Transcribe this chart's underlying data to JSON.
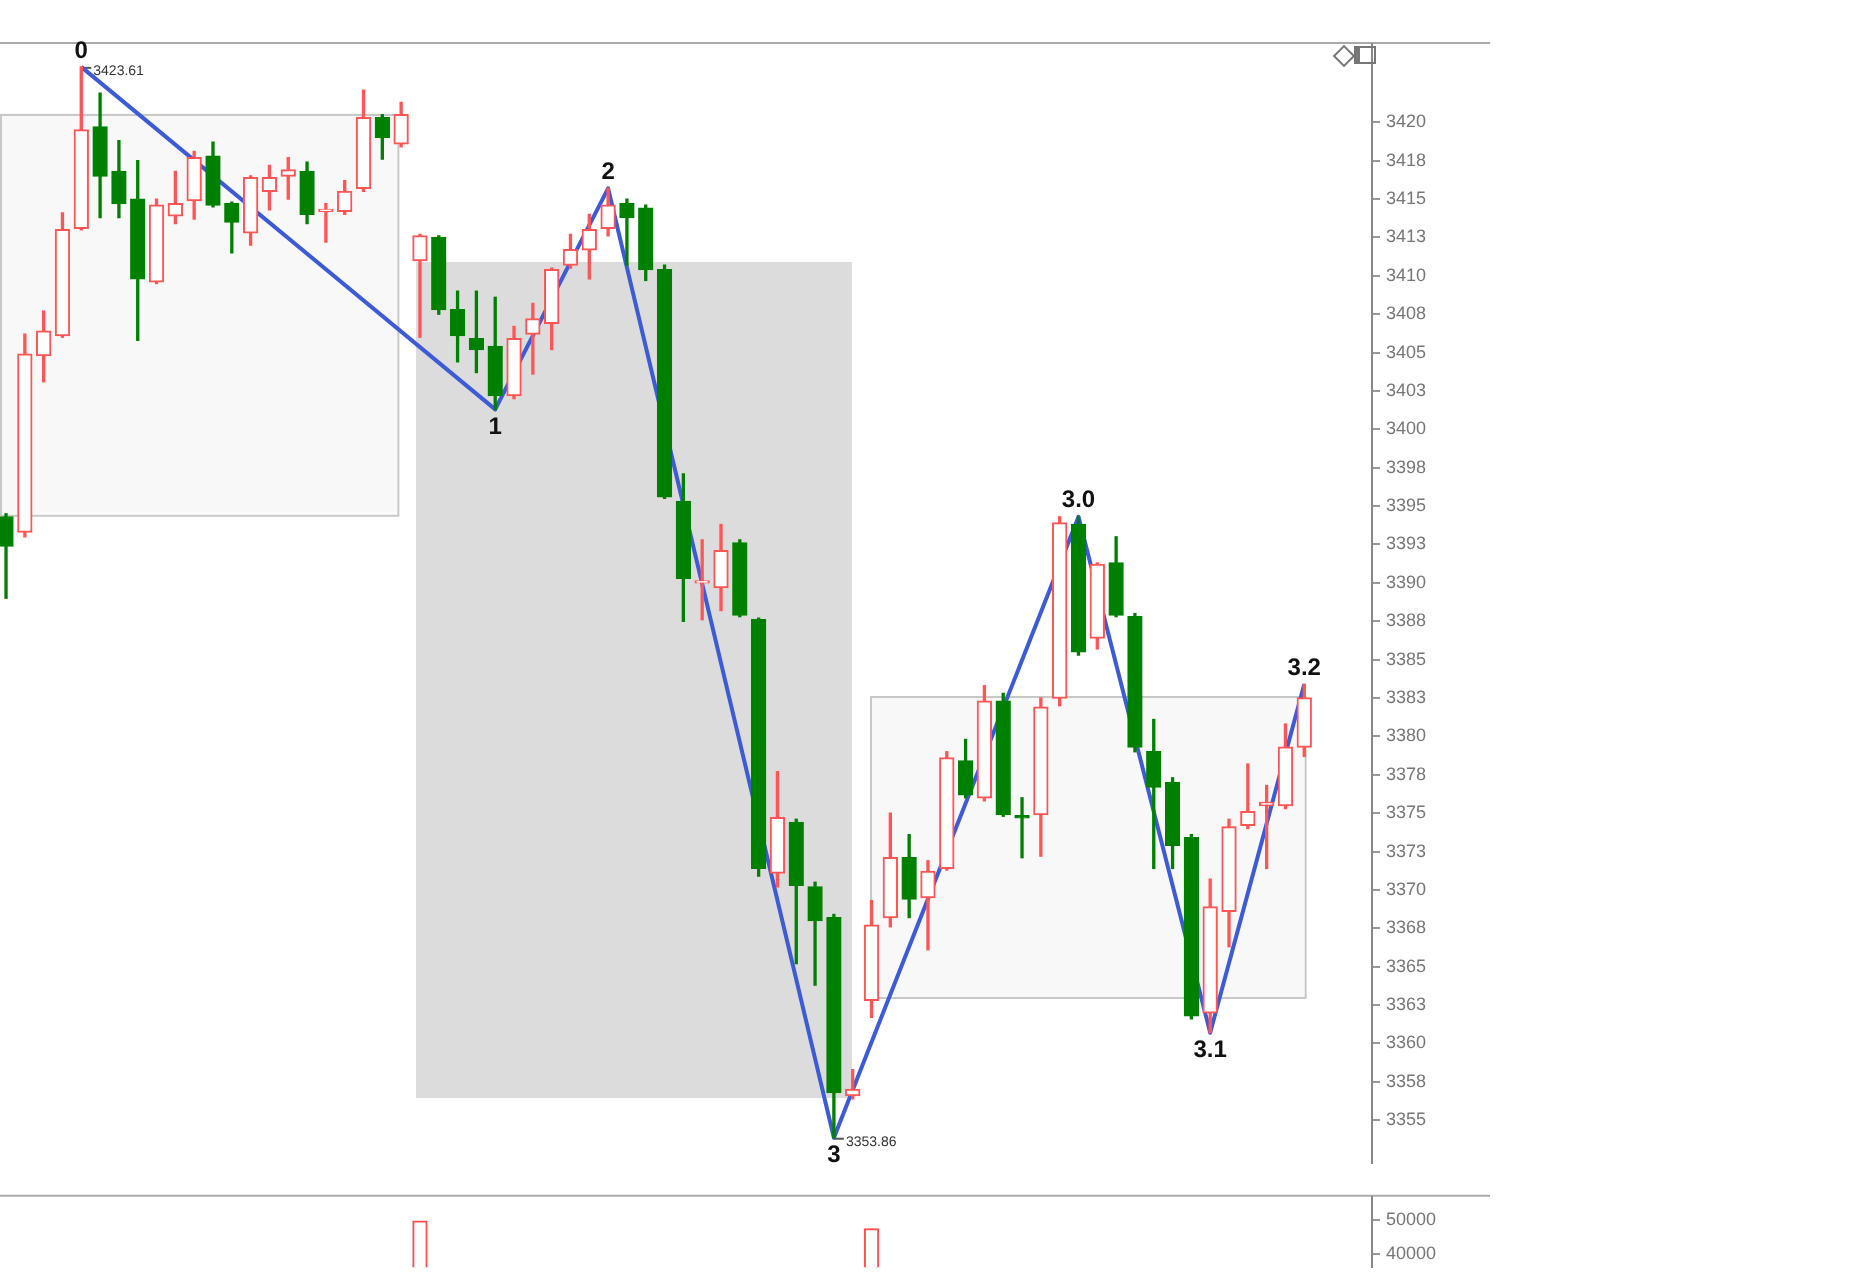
{
  "chart_data": [
    {
      "type": "candlestick",
      "categories": [
        null,
        null,
        null,
        null,
        null,
        null,
        null,
        null,
        null,
        null,
        null,
        null,
        null,
        null,
        null,
        null,
        null,
        null,
        null,
        null,
        null,
        null,
        null,
        null,
        null,
        null,
        null,
        null,
        null,
        null,
        null,
        null,
        null,
        null,
        null,
        null,
        null,
        null,
        null,
        null,
        null,
        null,
        null,
        null,
        null,
        null,
        null,
        null,
        null,
        null,
        null,
        null,
        null,
        null,
        null,
        null,
        null,
        null,
        null,
        null,
        null,
        null,
        null,
        null,
        null,
        null,
        null,
        null,
        null,
        null
      ],
      "ohlc": [
        [
          3394.3,
          3394.5,
          3389.0,
          3392.4
        ],
        [
          3393.3,
          3406.2,
          3393.0,
          3404.9
        ],
        [
          3404.8,
          3407.7,
          3403.1,
          3406.4
        ],
        [
          3406.1,
          3414.1,
          3406.0,
          3413.0
        ],
        [
          3413.1,
          3423.61,
          3413.0,
          3419.5
        ],
        [
          3419.7,
          3421.9,
          3413.8,
          3416.5
        ],
        [
          3416.8,
          3418.8,
          3413.8,
          3414.7
        ],
        [
          3415.0,
          3417.5,
          3405.8,
          3409.8
        ],
        [
          3409.6,
          3415.0,
          3409.5,
          3414.6
        ],
        [
          3413.9,
          3416.8,
          3413.4,
          3414.7
        ],
        [
          3414.9,
          3418.1,
          3413.7,
          3417.7
        ],
        [
          3417.8,
          3418.7,
          3414.5,
          3414.6
        ],
        [
          3414.7,
          3414.8,
          3411.5,
          3413.5
        ],
        [
          3412.8,
          3416.5,
          3412.0,
          3416.4
        ],
        [
          3415.5,
          3417.2,
          3414.3,
          3416.4
        ],
        [
          3416.5,
          3417.7,
          3415.0,
          3416.9
        ],
        [
          3416.8,
          3417.4,
          3413.4,
          3414.0
        ],
        [
          3414.2,
          3414.7,
          3412.2,
          3414.3
        ],
        [
          3414.2,
          3416.2,
          3414.0,
          3415.5
        ],
        [
          3415.7,
          3422.1,
          3415.5,
          3420.3
        ],
        [
          3420.3,
          3420.5,
          3417.6,
          3419.0
        ],
        [
          3418.6,
          3421.3,
          3418.4,
          3420.5
        ],
        [
          3411.0,
          3412.7,
          3406.0,
          3412.6
        ],
        [
          3412.5,
          3412.6,
          3407.5,
          3407.8
        ],
        [
          3407.8,
          3409.0,
          3404.4,
          3406.1
        ],
        [
          3405.9,
          3409.0,
          3403.7,
          3405.2
        ],
        [
          3405.4,
          3408.6,
          3401.3,
          3402.2
        ],
        [
          3402.2,
          3406.7,
          3402.0,
          3405.9
        ],
        [
          3406.2,
          3408.2,
          3403.6,
          3407.2
        ],
        [
          3406.9,
          3410.5,
          3405.2,
          3410.4
        ],
        [
          3410.7,
          3412.7,
          3410.5,
          3411.7
        ],
        [
          3411.7,
          3414.0,
          3409.8,
          3413.0
        ],
        [
          3413.1,
          3415.7,
          3412.6,
          3414.6
        ],
        [
          3414.7,
          3415.0,
          3410.7,
          3413.8
        ],
        [
          3414.4,
          3414.6,
          3409.7,
          3410.4
        ],
        [
          3410.4,
          3410.7,
          3395.5,
          3395.6
        ],
        [
          3395.3,
          3397.1,
          3387.5,
          3390.3
        ],
        [
          3390.0,
          3392.8,
          3387.6,
          3390.1
        ],
        [
          3389.7,
          3393.8,
          3388.2,
          3392.1
        ],
        [
          3392.6,
          3392.8,
          3387.8,
          3387.9
        ],
        [
          3387.6,
          3387.7,
          3370.9,
          3371.4
        ],
        [
          3371.1,
          3377.7,
          3370.2,
          3374.7
        ],
        [
          3374.4,
          3374.6,
          3365.2,
          3370.3
        ],
        [
          3370.2,
          3370.5,
          3363.8,
          3368.0
        ],
        [
          3368.2,
          3368.4,
          3353.86,
          3356.8
        ],
        [
          3356.6,
          3358.3,
          3356.4,
          3357.0
        ],
        [
          3362.8,
          3369.3,
          3361.7,
          3367.7
        ],
        [
          3368.2,
          3375.0,
          3367.6,
          3372.1
        ],
        [
          3372.1,
          3373.6,
          3368.2,
          3369.4
        ],
        [
          3369.5,
          3371.9,
          3366.1,
          3371.2
        ],
        [
          3371.4,
          3379.0,
          3371.3,
          3378.6
        ],
        [
          3378.4,
          3379.8,
          3376.0,
          3376.2
        ],
        [
          3376.0,
          3383.3,
          3375.8,
          3382.3
        ],
        [
          3382.3,
          3382.8,
          3374.8,
          3374.9
        ],
        [
          3374.8,
          3376.0,
          3372.1,
          3374.7
        ],
        [
          3374.9,
          3382.5,
          3372.2,
          3381.9
        ],
        [
          3382.5,
          3394.3,
          3382.0,
          3393.9
        ],
        [
          3393.8,
          3394.3,
          3385.3,
          3385.5
        ],
        [
          3386.4,
          3391.3,
          3385.7,
          3391.2
        ],
        [
          3391.3,
          3393.0,
          3387.8,
          3387.9
        ],
        [
          3387.8,
          3388.0,
          3379.0,
          3379.3
        ],
        [
          3379.0,
          3381.1,
          3371.4,
          3376.7
        ],
        [
          3377.0,
          3377.3,
          3371.4,
          3372.9
        ],
        [
          3373.4,
          3373.6,
          3361.6,
          3361.8
        ],
        [
          3362.0,
          3370.7,
          3360.7,
          3368.9
        ],
        [
          3368.6,
          3374.6,
          3366.3,
          3374.1
        ],
        [
          3374.2,
          3378.2,
          3374.0,
          3375.1
        ],
        [
          3375.5,
          3376.8,
          3371.4,
          3375.7
        ],
        [
          3375.5,
          3380.8,
          3375.3,
          3379.3
        ],
        [
          3379.3,
          3383.4,
          3378.7,
          3382.5
        ]
      ],
      "series": [
        {
          "type": "line",
          "color": "#3d5bd6",
          "values": [
            null,
            null,
            null,
            null,
            3423.61,
            null,
            null,
            null,
            null,
            null,
            null,
            null,
            null,
            null,
            null,
            null,
            null,
            null,
            null,
            null,
            null,
            null,
            null,
            null,
            null,
            null,
            3401.3,
            null,
            null,
            null,
            null,
            null,
            3415.7,
            null,
            null,
            null,
            null,
            null,
            null,
            null,
            null,
            null,
            null,
            null,
            3353.86,
            null,
            null,
            null,
            null,
            null,
            null,
            null,
            null,
            null,
            null,
            null,
            null,
            3394.3,
            null,
            null,
            null,
            null,
            null,
            null,
            3360.7,
            null,
            null,
            null,
            null,
            3383.4
          ],
          "value_labels": [
            null,
            null,
            null,
            null,
            "3423.61",
            null,
            null,
            null,
            null,
            null,
            null,
            null,
            null,
            null,
            null,
            null,
            null,
            null,
            null,
            null,
            null,
            null,
            null,
            null,
            null,
            null,
            null,
            null,
            null,
            null,
            null,
            null,
            null,
            null,
            null,
            null,
            null,
            null,
            null,
            null,
            null,
            null,
            null,
            null,
            "3353.86",
            null,
            null,
            null,
            null,
            null,
            null,
            null,
            null,
            null,
            null,
            null,
            null,
            null,
            null,
            null,
            null,
            null,
            null,
            null,
            null,
            null,
            null,
            null,
            null,
            null
          ]
        }
      ],
      "annotations": [
        {
          "text": "0",
          "y": 3423.61
        },
        {
          "text": "1",
          "y": 3401.3
        },
        {
          "text": "2",
          "y": 3415.7
        },
        {
          "text": "3",
          "y": 3353.86
        },
        {
          "text": "3.0",
          "y": 3394.3
        },
        {
          "text": "3.1",
          "y": 3360.7
        },
        {
          "text": "3.2",
          "y": 3383.4
        }
      ],
      "ylim": [
        3352.2,
        3425.1
      ],
      "yticks": [
        3355,
        {
          "value": 3357.5,
          "label": "3358"
        },
        3360,
        {
          "value": 3362.5,
          "label": "3363"
        },
        3365,
        {
          "value": 3367.5,
          "label": "3368"
        },
        3370,
        {
          "value": 3372.5,
          "label": "3373"
        },
        3375,
        {
          "value": 3377.5,
          "label": "3378"
        },
        3380,
        {
          "value": 3382.5,
          "label": "3383"
        },
        3385,
        {
          "value": 3387.5,
          "label": "3388"
        },
        3390,
        {
          "value": 3392.5,
          "label": "3393"
        },
        3395,
        {
          "value": 3397.5,
          "label": "3398"
        },
        3400,
        {
          "value": 3402.5,
          "label": "3403"
        },
        3405,
        {
          "value": 3407.5,
          "label": "3408"
        },
        3410,
        {
          "value": 3412.5,
          "label": "3413"
        },
        3415,
        {
          "value": 3417.5,
          "label": "3418"
        },
        3420
      ],
      "bands": [
        {
          "axis": "y",
          "from": 3394.5,
          "to": 3420.6,
          "color": "#c8c8c8"
        },
        {
          "axis": "y",
          "from": 3363.0,
          "to": 3382.6,
          "color": "#c8c8c8"
        }
      ],
      "grid": false,
      "legend": false
    },
    {
      "type": "bar",
      "categories": [
        null,
        null,
        null,
        null,
        null,
        null,
        null,
        null,
        null,
        null,
        null,
        null,
        null,
        null,
        null,
        null,
        null,
        null,
        null,
        null,
        null,
        null,
        null,
        null,
        null,
        null,
        null,
        null,
        null,
        null,
        null,
        null,
        null,
        null,
        null,
        null,
        null,
        null,
        null,
        null,
        null,
        null,
        null,
        null,
        null,
        null,
        null,
        null,
        null,
        null,
        null,
        null,
        null,
        null,
        null,
        null,
        null,
        null,
        null,
        null,
        null,
        null,
        null,
        null,
        null,
        null,
        null,
        null,
        null,
        null
      ],
      "values": [
        null,
        null,
        null,
        null,
        null,
        null,
        null,
        null,
        null,
        null,
        null,
        null,
        null,
        null,
        null,
        null,
        null,
        null,
        null,
        null,
        null,
        null,
        49600,
        null,
        null,
        null,
        null,
        null,
        null,
        null,
        null,
        null,
        null,
        null,
        null,
        null,
        null,
        null,
        null,
        null,
        null,
        null,
        null,
        null,
        null,
        null,
        47300,
        null,
        null,
        null,
        null,
        null,
        null,
        null,
        null,
        null,
        null,
        null,
        null,
        null,
        null,
        null,
        null,
        null,
        null,
        null,
        null,
        null,
        null,
        null
      ],
      "color": "#ff4d4d",
      "ylim": [
        36000,
        56800
      ],
      "yticks": [
        40000,
        50000
      ],
      "grid": false,
      "legend": false
    }
  ]
}
